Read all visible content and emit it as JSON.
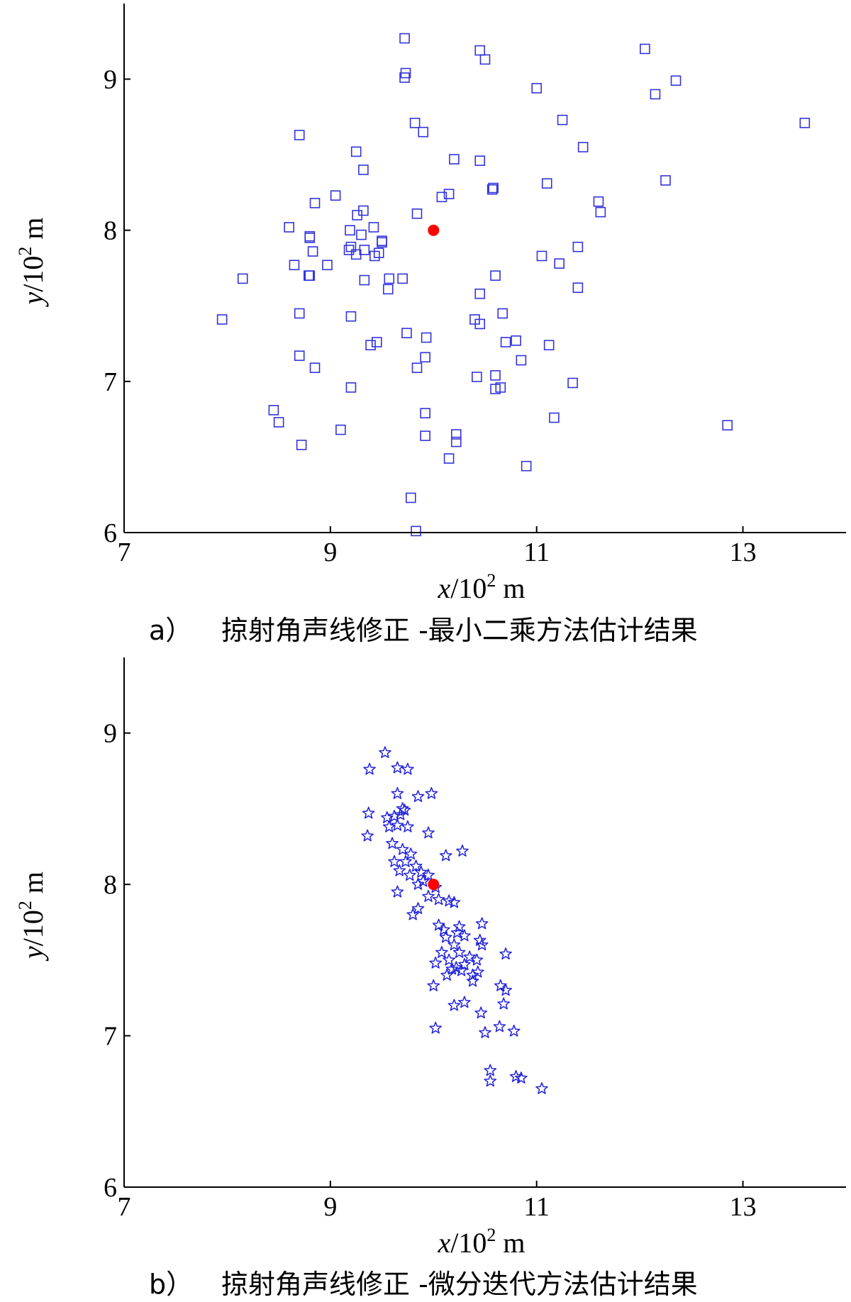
{
  "chart_data": [
    {
      "type": "scatter",
      "caption": {
        "label": "a）",
        "text": "掠射角声线修正 -最小二乘方法估计结果"
      },
      "xlabel": {
        "var": "x",
        "unit": "/10",
        "exp": "2",
        "suffix": " m"
      },
      "ylabel": {
        "var": "y",
        "unit": "/10",
        "exp": "2",
        "suffix": " m"
      },
      "xlim": [
        7,
        14
      ],
      "ylim": [
        6,
        9.5
      ],
      "xticks": [
        7,
        9,
        11,
        13
      ],
      "yticks": [
        6,
        7,
        8,
        9
      ],
      "marker": "square",
      "color": "#3333dd",
      "true_point": {
        "x": 10.0,
        "y": 8.0,
        "color": "#ff0000"
      },
      "points": [
        [
          9.72,
          9.27
        ],
        [
          9.73,
          9.04
        ],
        [
          9.72,
          9.01
        ],
        [
          10.45,
          9.19
        ],
        [
          10.5,
          9.13
        ],
        [
          12.05,
          9.2
        ],
        [
          12.35,
          8.99
        ],
        [
          11.0,
          8.94
        ],
        [
          12.15,
          8.9
        ],
        [
          13.6,
          8.71
        ],
        [
          9.82,
          8.71
        ],
        [
          9.9,
          8.65
        ],
        [
          11.25,
          8.73
        ],
        [
          8.7,
          8.63
        ],
        [
          11.45,
          8.55
        ],
        [
          9.25,
          8.52
        ],
        [
          10.2,
          8.47
        ],
        [
          10.45,
          8.46
        ],
        [
          9.32,
          8.4
        ],
        [
          10.58,
          8.28
        ],
        [
          10.57,
          8.27
        ],
        [
          11.1,
          8.31
        ],
        [
          12.25,
          8.33
        ],
        [
          9.05,
          8.23
        ],
        [
          10.15,
          8.24
        ],
        [
          10.08,
          8.22
        ],
        [
          8.85,
          8.18
        ],
        [
          11.6,
          8.19
        ],
        [
          11.62,
          8.12
        ],
        [
          9.32,
          8.13
        ],
        [
          9.26,
          8.1
        ],
        [
          9.84,
          8.11
        ],
        [
          8.6,
          8.02
        ],
        [
          9.19,
          8.0
        ],
        [
          9.42,
          8.02
        ],
        [
          9.3,
          7.97
        ],
        [
          8.8,
          7.96
        ],
        [
          8.8,
          7.95
        ],
        [
          9.5,
          7.93
        ],
        [
          9.5,
          7.92
        ],
        [
          9.2,
          7.89
        ],
        [
          9.18,
          7.87
        ],
        [
          9.33,
          7.87
        ],
        [
          9.25,
          7.84
        ],
        [
          9.47,
          7.85
        ],
        [
          9.43,
          7.83
        ],
        [
          8.83,
          7.86
        ],
        [
          11.4,
          7.89
        ],
        [
          11.05,
          7.83
        ],
        [
          8.97,
          7.77
        ],
        [
          8.65,
          7.77
        ],
        [
          11.22,
          7.78
        ],
        [
          8.8,
          7.7
        ],
        [
          8.79,
          7.7
        ],
        [
          10.6,
          7.7
        ],
        [
          9.7,
          7.68
        ],
        [
          9.57,
          7.68
        ],
        [
          9.33,
          7.67
        ],
        [
          8.15,
          7.68
        ],
        [
          9.56,
          7.61
        ],
        [
          11.4,
          7.62
        ],
        [
          10.45,
          7.58
        ],
        [
          10.67,
          7.45
        ],
        [
          8.7,
          7.45
        ],
        [
          9.2,
          7.43
        ],
        [
          7.95,
          7.41
        ],
        [
          10.4,
          7.41
        ],
        [
          10.45,
          7.38
        ],
        [
          9.74,
          7.32
        ],
        [
          9.93,
          7.29
        ],
        [
          9.45,
          7.26
        ],
        [
          9.39,
          7.24
        ],
        [
          10.7,
          7.26
        ],
        [
          10.8,
          7.27
        ],
        [
          11.12,
          7.24
        ],
        [
          8.7,
          7.17
        ],
        [
          9.92,
          7.16
        ],
        [
          10.85,
          7.14
        ],
        [
          8.85,
          7.09
        ],
        [
          9.84,
          7.09
        ],
        [
          10.42,
          7.03
        ],
        [
          10.6,
          7.04
        ],
        [
          10.65,
          6.96
        ],
        [
          10.6,
          6.95
        ],
        [
          11.35,
          6.99
        ],
        [
          9.2,
          6.96
        ],
        [
          8.45,
          6.81
        ],
        [
          9.92,
          6.79
        ],
        [
          8.5,
          6.73
        ],
        [
          11.17,
          6.76
        ],
        [
          12.85,
          6.71
        ],
        [
          9.1,
          6.68
        ],
        [
          10.22,
          6.65
        ],
        [
          10.22,
          6.6
        ],
        [
          9.92,
          6.64
        ],
        [
          8.72,
          6.58
        ],
        [
          10.15,
          6.49
        ],
        [
          10.9,
          6.44
        ],
        [
          9.78,
          6.23
        ],
        [
          9.83,
          6.01
        ]
      ]
    },
    {
      "type": "scatter",
      "caption": {
        "label": "b）",
        "text": "掠射角声线修正 -微分迭代方法估计结果"
      },
      "xlabel": {
        "var": "x",
        "unit": "/10",
        "exp": "2",
        "suffix": " m"
      },
      "ylabel": {
        "var": "y",
        "unit": "/10",
        "exp": "2",
        "suffix": " m"
      },
      "xlim": [
        7,
        14
      ],
      "ylim": [
        6,
        9.5
      ],
      "xticks": [
        7,
        9,
        11,
        13
      ],
      "yticks": [
        6,
        7,
        8,
        9
      ],
      "marker": "star",
      "color": "#2222dd",
      "true_point": {
        "x": 10.0,
        "y": 8.0,
        "color": "#ff0000"
      },
      "points": [
        [
          9.53,
          8.87
        ],
        [
          9.38,
          8.76
        ],
        [
          9.65,
          8.77
        ],
        [
          9.75,
          8.76
        ],
        [
          9.65,
          8.6
        ],
        [
          9.85,
          8.58
        ],
        [
          9.98,
          8.6
        ],
        [
          9.7,
          8.5
        ],
        [
          9.72,
          8.49
        ],
        [
          9.55,
          8.44
        ],
        [
          9.62,
          8.45
        ],
        [
          9.68,
          8.46
        ],
        [
          9.37,
          8.47
        ],
        [
          9.57,
          8.38
        ],
        [
          9.65,
          8.39
        ],
        [
          9.75,
          8.38
        ],
        [
          9.95,
          8.34
        ],
        [
          9.36,
          8.32
        ],
        [
          9.6,
          8.27
        ],
        [
          9.7,
          8.23
        ],
        [
          9.78,
          8.2
        ],
        [
          9.62,
          8.15
        ],
        [
          9.73,
          8.15
        ],
        [
          9.83,
          8.12
        ],
        [
          9.88,
          8.08
        ],
        [
          10.12,
          8.19
        ],
        [
          10.28,
          8.22
        ],
        [
          9.67,
          8.09
        ],
        [
          9.77,
          8.06
        ],
        [
          9.95,
          8.06
        ],
        [
          9.9,
          8.02
        ],
        [
          9.85,
          8.0
        ],
        [
          10.02,
          7.98
        ],
        [
          9.65,
          7.95
        ],
        [
          9.95,
          7.92
        ],
        [
          10.05,
          7.9
        ],
        [
          10.15,
          7.89
        ],
        [
          10.2,
          7.88
        ],
        [
          9.85,
          7.84
        ],
        [
          9.8,
          7.8
        ],
        [
          10.05,
          7.73
        ],
        [
          10.23,
          7.68
        ],
        [
          10.25,
          7.72
        ],
        [
          10.47,
          7.74
        ],
        [
          10.1,
          7.7
        ],
        [
          10.12,
          7.65
        ],
        [
          10.2,
          7.6
        ],
        [
          10.3,
          7.66
        ],
        [
          10.45,
          7.63
        ],
        [
          10.47,
          7.6
        ],
        [
          10.08,
          7.55
        ],
        [
          10.15,
          7.5
        ],
        [
          10.25,
          7.55
        ],
        [
          10.35,
          7.52
        ],
        [
          10.42,
          7.5
        ],
        [
          10.7,
          7.54
        ],
        [
          10.02,
          7.48
        ],
        [
          10.22,
          7.45
        ],
        [
          10.27,
          7.43
        ],
        [
          10.3,
          7.47
        ],
        [
          10.18,
          7.44
        ],
        [
          10.13,
          7.4
        ],
        [
          10.38,
          7.4
        ],
        [
          10.38,
          7.36
        ],
        [
          10.43,
          7.42
        ],
        [
          10.0,
          7.33
        ],
        [
          10.65,
          7.33
        ],
        [
          10.7,
          7.3
        ],
        [
          10.2,
          7.2
        ],
        [
          10.3,
          7.22
        ],
        [
          10.46,
          7.15
        ],
        [
          10.68,
          7.21
        ],
        [
          10.02,
          7.05
        ],
        [
          10.5,
          7.02
        ],
        [
          10.64,
          7.06
        ],
        [
          10.78,
          7.03
        ],
        [
          10.55,
          6.77
        ],
        [
          10.55,
          6.7
        ],
        [
          10.8,
          6.73
        ],
        [
          10.85,
          6.72
        ],
        [
          11.05,
          6.65
        ]
      ]
    }
  ]
}
